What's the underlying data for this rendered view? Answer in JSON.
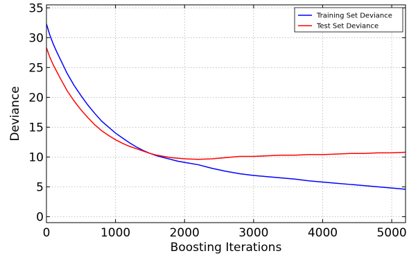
{
  "chart_data": {
    "type": "line",
    "title": "",
    "xlabel": "Boosting Iterations",
    "ylabel": "Deviance",
    "xlim": [
      0,
      5200
    ],
    "ylim": [
      -1,
      35.5
    ],
    "xticks": [
      0,
      1000,
      2000,
      3000,
      4000,
      5000
    ],
    "yticks": [
      0,
      5,
      10,
      15,
      20,
      25,
      30,
      35
    ],
    "grid": true,
    "legend_position": "top-right",
    "series": [
      {
        "name": "Training Set Deviance",
        "color": "#0000ff",
        "x": [
          0,
          50,
          100,
          150,
          200,
          300,
          400,
          500,
          600,
          700,
          800,
          900,
          1000,
          1100,
          1200,
          1300,
          1400,
          1500,
          1600,
          1700,
          1800,
          1900,
          2000,
          2200,
          2400,
          2600,
          2800,
          3000,
          3200,
          3400,
          3600,
          3800,
          4000,
          4200,
          4400,
          4600,
          4800,
          5000,
          5200
        ],
        "values": [
          32.3,
          30.4,
          28.9,
          27.6,
          26.4,
          24.0,
          22.0,
          20.3,
          18.7,
          17.3,
          16.0,
          15.0,
          14.0,
          13.2,
          12.4,
          11.7,
          11.1,
          10.6,
          10.2,
          9.9,
          9.6,
          9.3,
          9.1,
          8.7,
          8.1,
          7.6,
          7.2,
          6.9,
          6.7,
          6.5,
          6.3,
          6.0,
          5.8,
          5.6,
          5.4,
          5.2,
          5.0,
          4.8,
          4.6
        ]
      },
      {
        "name": "Test Set Deviance",
        "color": "#ff0000",
        "x": [
          0,
          50,
          100,
          150,
          200,
          300,
          400,
          500,
          600,
          700,
          800,
          900,
          1000,
          1100,
          1200,
          1300,
          1400,
          1500,
          1600,
          1700,
          1800,
          1900,
          2000,
          2200,
          2400,
          2600,
          2800,
          3000,
          3200,
          3400,
          3600,
          3800,
          4000,
          4200,
          4400,
          4600,
          4800,
          5000,
          5200
        ],
        "values": [
          28.3,
          26.7,
          25.4,
          24.3,
          23.2,
          21.1,
          19.4,
          17.9,
          16.6,
          15.4,
          14.4,
          13.6,
          12.9,
          12.3,
          11.8,
          11.4,
          11.0,
          10.6,
          10.3,
          10.1,
          9.9,
          9.8,
          9.7,
          9.6,
          9.7,
          9.9,
          10.1,
          10.1,
          10.2,
          10.3,
          10.3,
          10.4,
          10.4,
          10.5,
          10.6,
          10.6,
          10.7,
          10.7,
          10.8
        ]
      }
    ]
  }
}
